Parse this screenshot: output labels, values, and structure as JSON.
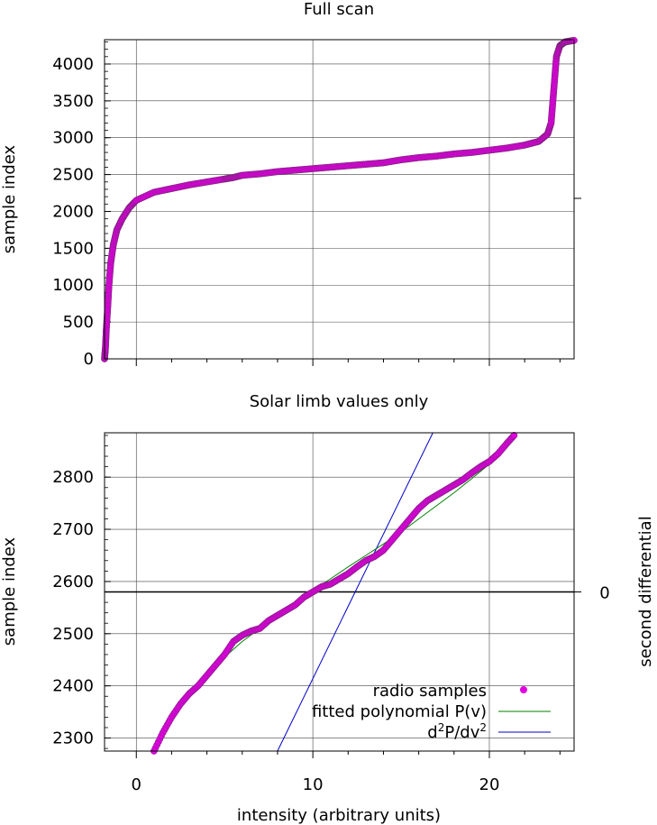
{
  "colors": {
    "samples": "#e000e0",
    "sample_edge": "#6a2a6a",
    "fit": "#008000",
    "d2": "#0000cc",
    "grid": "#444444",
    "axis": "#000000"
  },
  "chart_data": [
    {
      "type": "scatter",
      "title": "Full scan",
      "xlabel": "",
      "ylabel": "sample index",
      "xlim": [
        -1.8,
        24.8
      ],
      "ylim": [
        0,
        4330
      ],
      "xticks": [
        0,
        10,
        20
      ],
      "xtick_labels": [
        "",
        "",
        ""
      ],
      "yticks": [
        0,
        500,
        1000,
        1500,
        2000,
        2500,
        3000,
        3500,
        4000
      ],
      "ytick_labels": [
        "0",
        "500",
        "1000",
        "1500",
        "2000",
        "2500",
        "3000",
        "3500",
        "4000"
      ],
      "grid": true,
      "series": [
        {
          "name": "radio samples",
          "x": [
            -1.8,
            -1.75,
            -1.7,
            -1.62,
            -1.55,
            -1.45,
            -1.3,
            -1.1,
            -0.8,
            -0.4,
            0.0,
            1.0,
            2.0,
            3.0,
            4.0,
            5.0,
            5.5,
            6.0,
            7.0,
            8.0,
            9.0,
            10.0,
            11.0,
            12.0,
            13.0,
            14.0,
            15.0,
            16.0,
            17.0,
            18.0,
            19.0,
            20.0,
            21.0,
            22.0,
            22.8,
            23.3,
            23.5,
            23.6,
            23.7,
            23.8,
            24.0,
            24.3,
            24.8
          ],
          "y": [
            0,
            150,
            400,
            700,
            1000,
            1300,
            1550,
            1750,
            1900,
            2050,
            2150,
            2260,
            2310,
            2360,
            2400,
            2440,
            2460,
            2490,
            2510,
            2540,
            2560,
            2580,
            2600,
            2620,
            2640,
            2660,
            2700,
            2730,
            2750,
            2780,
            2800,
            2830,
            2860,
            2900,
            2950,
            3050,
            3200,
            3500,
            3800,
            4100,
            4250,
            4300,
            4320
          ]
        }
      ]
    },
    {
      "type": "scatter",
      "title": "Solar limb values only",
      "xlabel": "intensity (arbitrary units)",
      "ylabel": "sample index",
      "y2label": "second differential",
      "xlim": [
        -1.8,
        24.8
      ],
      "ylim": [
        2275,
        2885
      ],
      "xticks": [
        0,
        10,
        20
      ],
      "xtick_labels": [
        "0",
        "10",
        "20"
      ],
      "yticks": [
        2300,
        2400,
        2500,
        2600,
        2700,
        2800
      ],
      "ytick_labels": [
        "2300",
        "2400",
        "2500",
        "2600",
        "2700",
        "2800"
      ],
      "y2_zero_at_y": 2580,
      "y2tick_labels": [
        "0"
      ],
      "grid": true,
      "legend": "bottom-right",
      "series": [
        {
          "name": "radio samples",
          "x": [
            1.0,
            1.5,
            2.0,
            2.5,
            3.0,
            3.5,
            4.0,
            4.5,
            5.0,
            5.5,
            6.0,
            6.5,
            7.0,
            7.5,
            8.0,
            8.5,
            9.0,
            9.5,
            10.0,
            10.5,
            11.0,
            11.5,
            12.0,
            12.5,
            13.0,
            13.5,
            14.0,
            14.5,
            15.0,
            15.5,
            16.0,
            16.5,
            17.0,
            17.5,
            18.0,
            18.5,
            19.0,
            19.5,
            20.0,
            20.5,
            21.0,
            21.4
          ],
          "y": [
            2275,
            2310,
            2340,
            2365,
            2385,
            2400,
            2420,
            2440,
            2460,
            2485,
            2497,
            2505,
            2510,
            2525,
            2535,
            2545,
            2555,
            2570,
            2580,
            2590,
            2595,
            2605,
            2615,
            2628,
            2640,
            2648,
            2660,
            2680,
            2700,
            2720,
            2740,
            2755,
            2765,
            2775,
            2785,
            2795,
            2808,
            2820,
            2830,
            2845,
            2865,
            2880
          ]
        },
        {
          "name": "fitted polynomial P(v)",
          "x": [
            1.0,
            2.0,
            3.0,
            4.0,
            5.0,
            6.0,
            7.0,
            8.0,
            9.0,
            10.0,
            11.0,
            12.0,
            13.0,
            14.0,
            15.0,
            16.0,
            17.0,
            18.0,
            19.0,
            20.0,
            21.0,
            21.4
          ],
          "y": [
            2278,
            2335,
            2380,
            2420,
            2455,
            2485,
            2510,
            2535,
            2560,
            2583,
            2605,
            2628,
            2650,
            2672,
            2695,
            2720,
            2745,
            2770,
            2797,
            2825,
            2860,
            2877
          ]
        },
        {
          "name": "d²P/dv²",
          "x": [
            8.0,
            16.8
          ],
          "y": [
            2275,
            2885
          ]
        }
      ],
      "legend_entries": [
        {
          "label": "radio samples",
          "key": "samples"
        },
        {
          "label": "fitted polynomial P(v)",
          "key": "fit"
        },
        {
          "label_main": "d",
          "label_sup1": "2",
          "label_mid": "P/dv",
          "label_sup2": "2",
          "key": "d2"
        }
      ]
    }
  ]
}
